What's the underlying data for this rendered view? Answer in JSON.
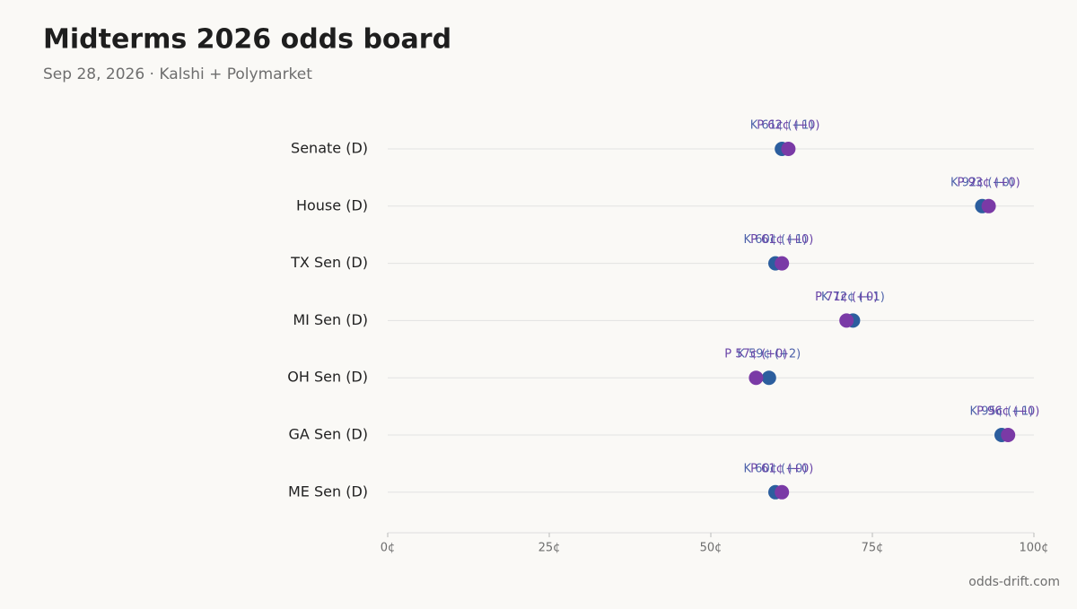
{
  "chart_data": {
    "type": "dot",
    "title": "Midterms 2026 odds board",
    "subtitle": "Sep 28, 2026 · Kalshi + Polymarket",
    "source": "odds-drift.com",
    "categories": [
      "Senate (D)",
      "House (D)",
      "TX Sen (D)",
      "MI Sen (D)",
      "OH Sen (D)",
      "GA Sen (D)",
      "ME Sen (D)"
    ],
    "series": [
      {
        "name": "Kalshi",
        "color": "#2c5e9e",
        "label_color": "#4f63ab",
        "values": [
          61,
          92,
          60,
          72,
          59,
          95,
          60
        ],
        "value_labels": [
          "K 61¢ (+1)",
          "K 92¢ (+0)",
          "K 60¢ (+1)",
          "K 72¢ (+1)",
          "K 59¢ (+2)",
          "K 95¢ (+1)",
          "K 60¢ (+0)"
        ]
      },
      {
        "name": "Polymarket",
        "color": "#7a3aa6",
        "label_color": "#6a45a8",
        "values": [
          62,
          93,
          61,
          71,
          57,
          96,
          61
        ],
        "value_labels": [
          "P 62¢ (+0)",
          "P 93¢ (+0)",
          "P 61¢ (+0)",
          "P 71¢ (+0)",
          "P 57¢ (+0)",
          "P 96¢ (+0)",
          "P 61¢ (+0)"
        ]
      }
    ],
    "xlim": [
      0,
      100
    ],
    "xticks": [
      {
        "value": 0,
        "label": "0¢"
      },
      {
        "value": 25,
        "label": "25¢"
      },
      {
        "value": 50,
        "label": "50¢"
      },
      {
        "value": 75,
        "label": "75¢"
      },
      {
        "value": 100,
        "label": "100¢"
      }
    ],
    "grid": true
  }
}
